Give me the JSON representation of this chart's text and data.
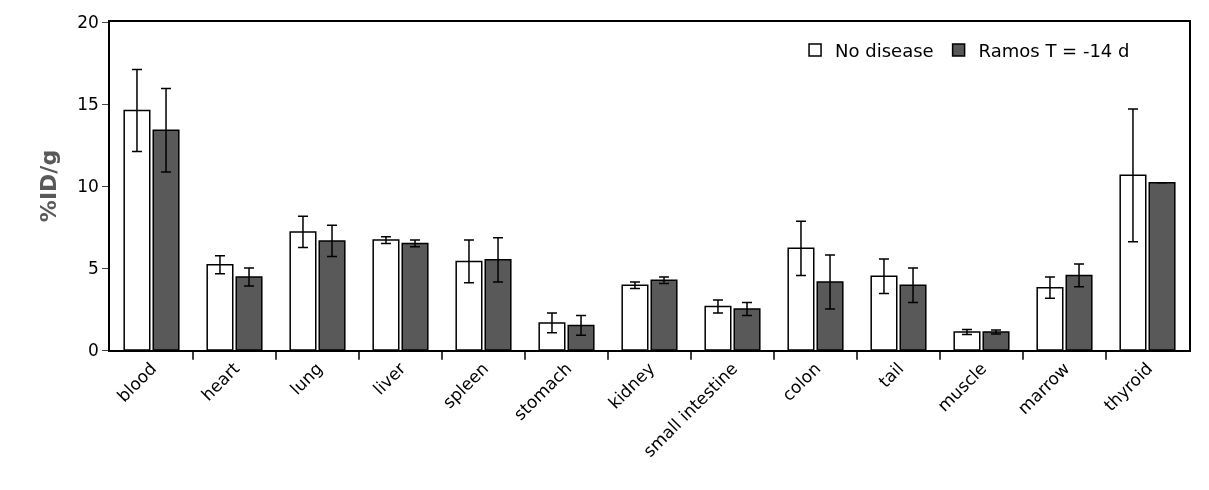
{
  "chart_data": {
    "type": "bar",
    "ylabel": "%ID/g",
    "categories": [
      "blood",
      "heart",
      "lung",
      "liver",
      "spleen",
      "stomach",
      "kidney",
      "small intestine",
      "colon",
      "tail",
      "muscle",
      "marrow",
      "thyroid"
    ],
    "series": [
      {
        "name": "No disease",
        "color": "#ffffff",
        "values": [
          14.6,
          5.2,
          7.2,
          6.7,
          5.4,
          1.65,
          3.95,
          2.65,
          6.2,
          4.5,
          1.1,
          3.8,
          10.65
        ],
        "errors": [
          2.5,
          0.55,
          0.95,
          0.2,
          1.3,
          0.6,
          0.2,
          0.4,
          1.65,
          1.05,
          0.15,
          0.65,
          4.05
        ]
      },
      {
        "name": "Ramos T = -14 d",
        "color": "#595959",
        "values": [
          13.4,
          4.45,
          6.65,
          6.5,
          5.5,
          1.5,
          4.25,
          2.5,
          4.15,
          3.95,
          1.1,
          4.55,
          10.2
        ],
        "errors": [
          2.55,
          0.55,
          0.95,
          0.2,
          1.35,
          0.6,
          0.2,
          0.4,
          1.65,
          1.05,
          0.12,
          0.7,
          null
        ]
      }
    ],
    "ylim": [
      0,
      20
    ],
    "yticks": [
      0,
      5,
      10,
      15,
      20
    ],
    "legend": "top right"
  }
}
